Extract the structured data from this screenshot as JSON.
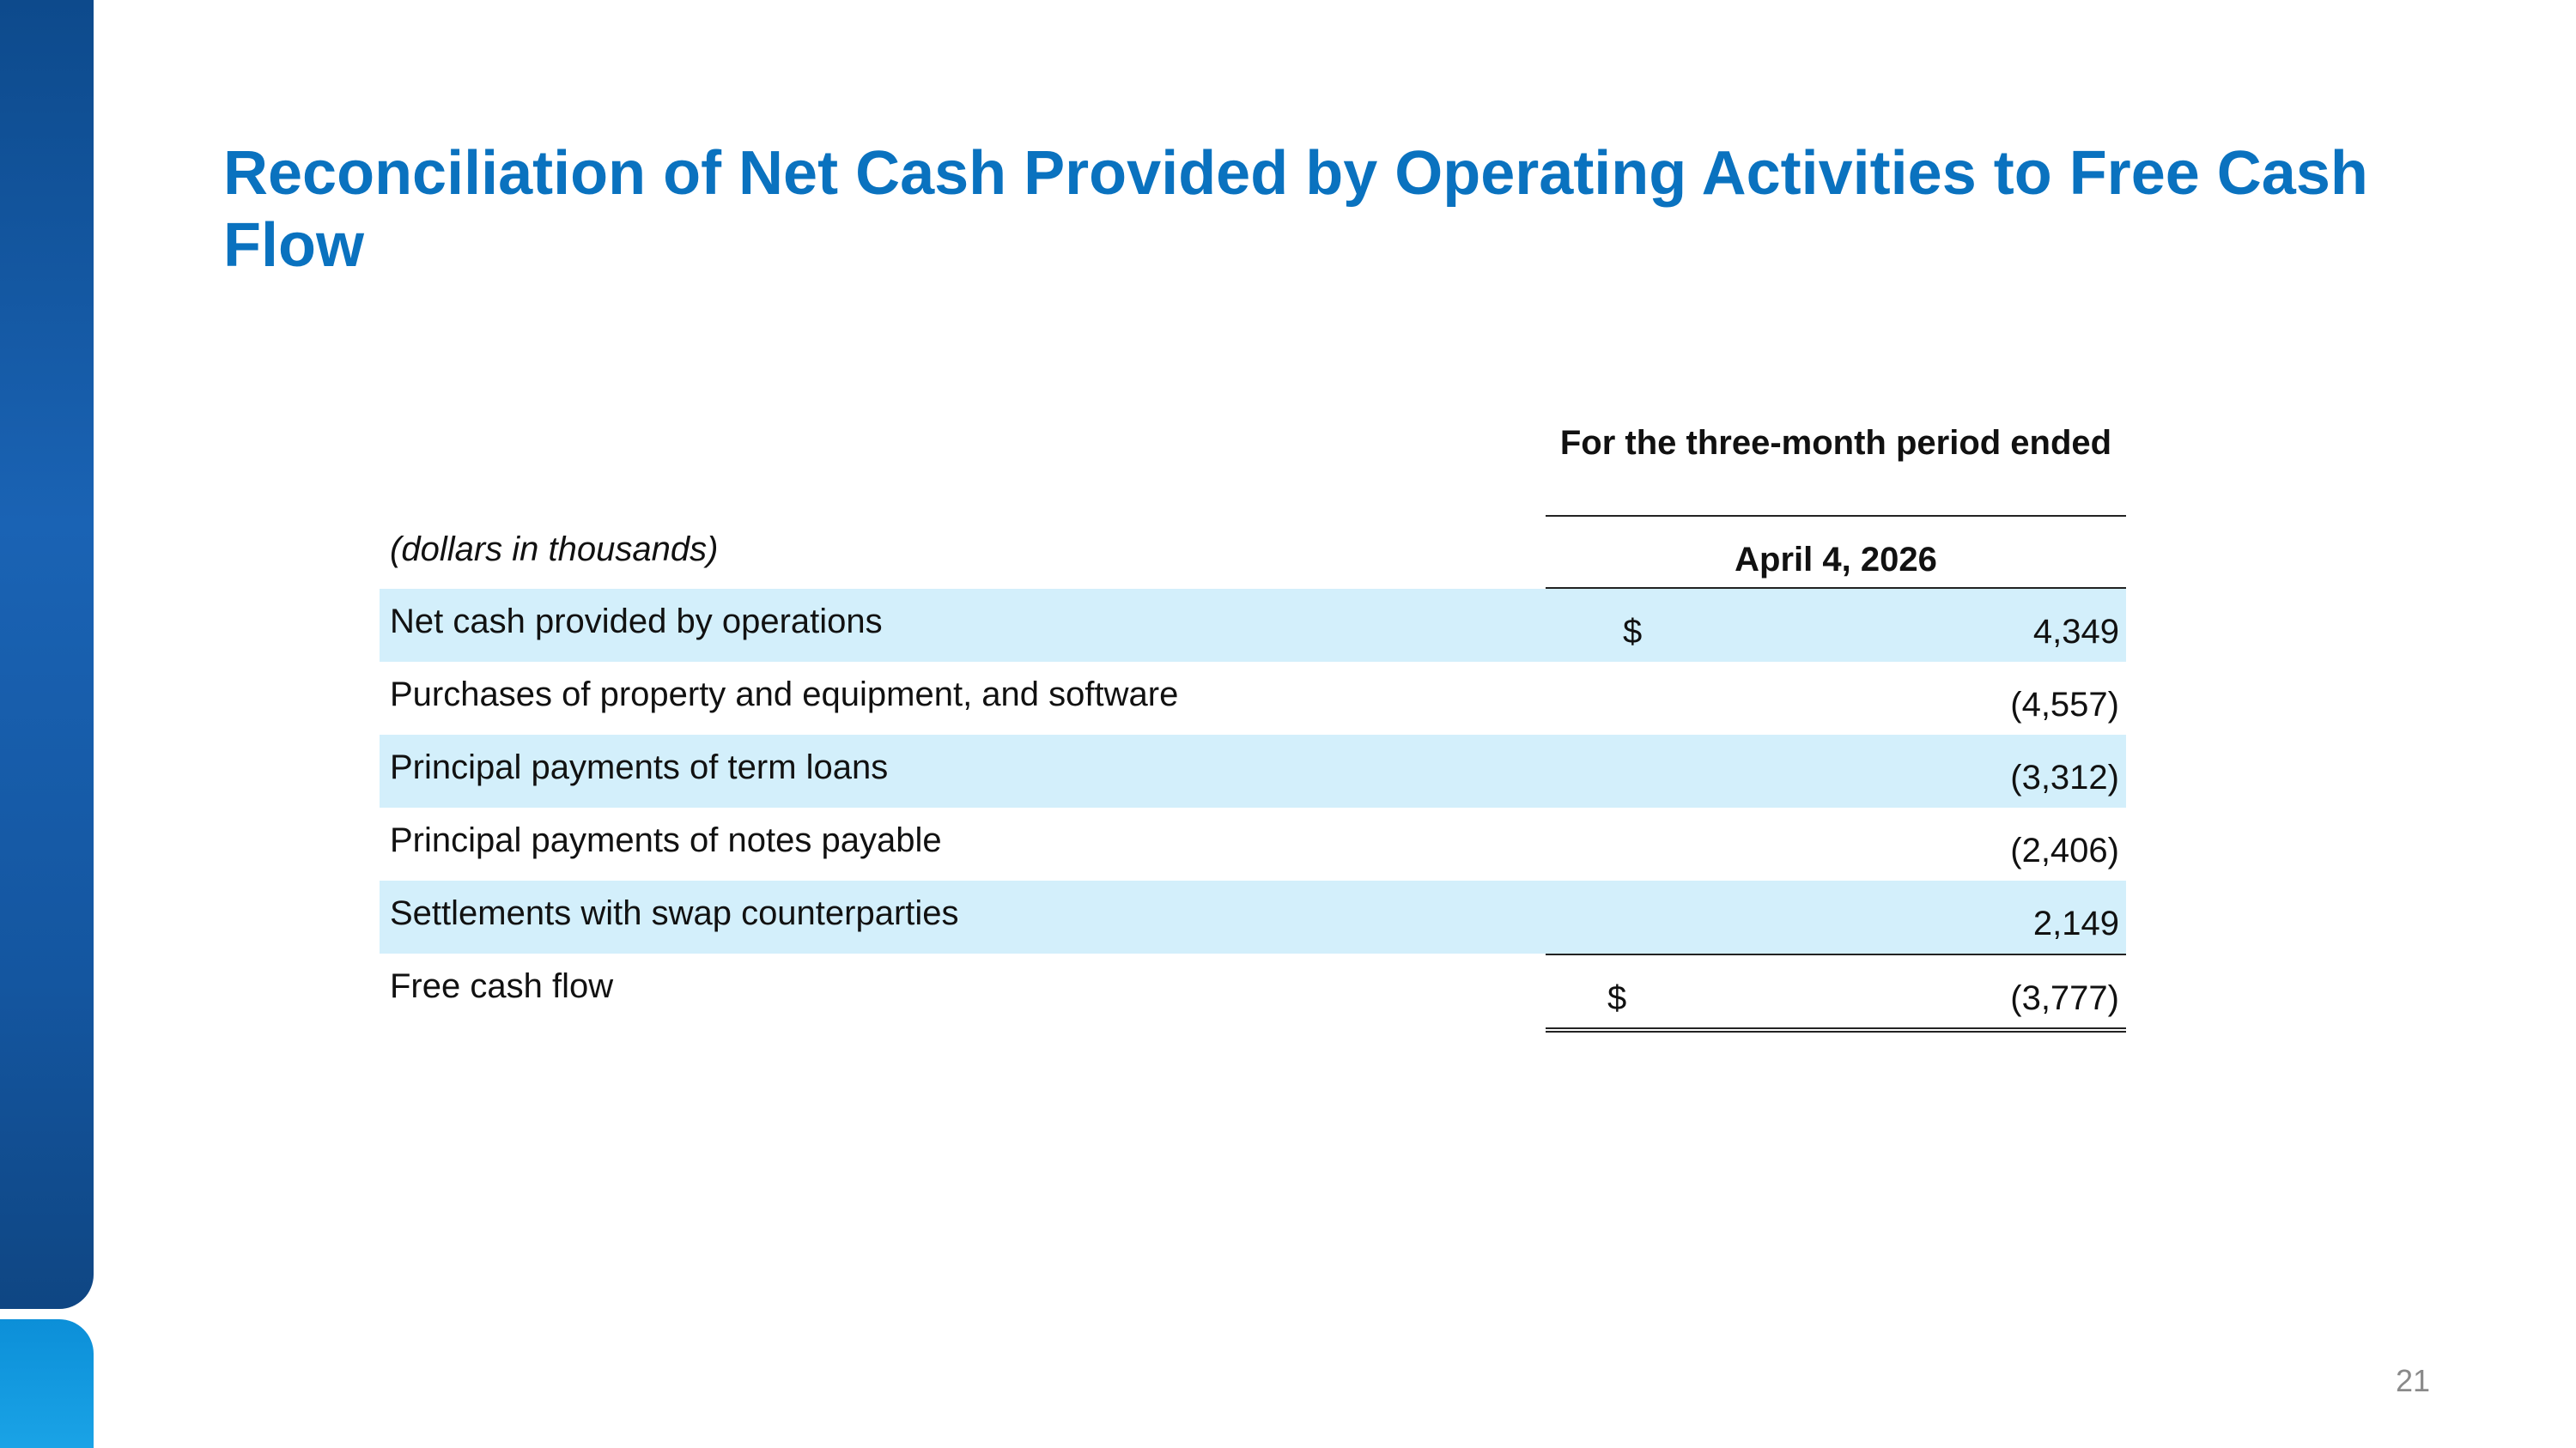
{
  "slide": {
    "title": "Reconciliation of Net Cash Provided by Operating Activities to Free Cash Flow",
    "page_number": "21"
  },
  "table": {
    "units_label": "(dollars in thousands)",
    "period_header": "For the three-month period ended",
    "date_header": "April 4, 2026",
    "rows": [
      {
        "label": "Net cash provided by operations",
        "currency": "$",
        "value": "4,349"
      },
      {
        "label": "Purchases of property and equipment, and software",
        "currency": "",
        "value": "(4,557)"
      },
      {
        "label": "Principal payments of term loans",
        "currency": "",
        "value": "(3,312)"
      },
      {
        "label": "Principal payments of notes payable",
        "currency": "",
        "value": "(2,406)"
      },
      {
        "label": "Settlements with swap counterparties",
        "currency": "",
        "value": "2,149"
      }
    ],
    "total": {
      "label": "Free cash flow",
      "currency": "$",
      "value": "(3,777)"
    }
  },
  "colors": {
    "title": "#0a72bf",
    "row_shade": "#d3effb",
    "side_bar_dark": "#1a63b4",
    "side_bar_light": "#1aa3e6"
  }
}
